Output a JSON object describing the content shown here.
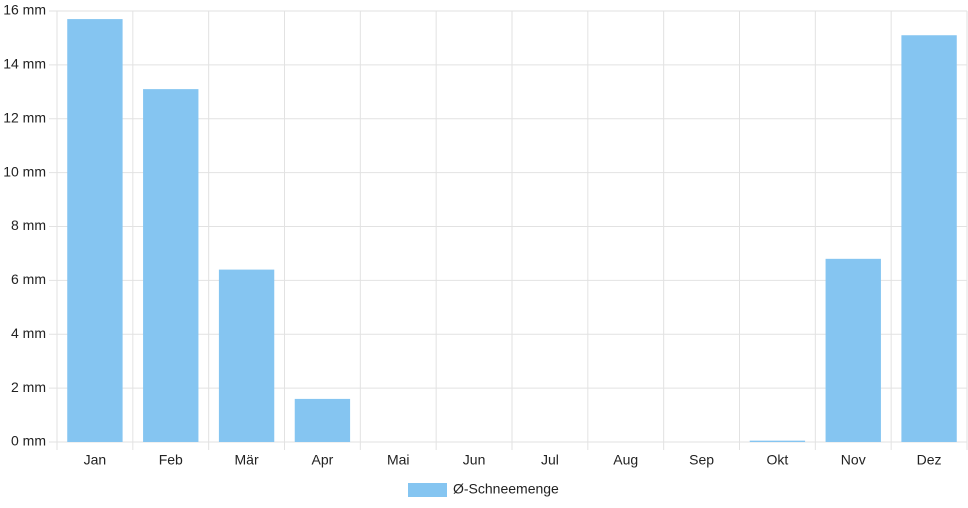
{
  "chart_data": {
    "type": "bar",
    "categories": [
      "Jan",
      "Feb",
      "Mär",
      "Apr",
      "Mai",
      "Jun",
      "Jul",
      "Aug",
      "Sep",
      "Okt",
      "Nov",
      "Dez"
    ],
    "series": [
      {
        "name": "Ø-Schneemenge",
        "color": "#85c5f1",
        "values": [
          15.7,
          13.1,
          6.4,
          1.6,
          0,
          0,
          0,
          0,
          0,
          0.05,
          6.8,
          15.1
        ]
      }
    ],
    "ylim": [
      0,
      16
    ],
    "yticks": [
      {
        "value": 0,
        "label": "0 mm"
      },
      {
        "value": 2,
        "label": "2 mm"
      },
      {
        "value": 4,
        "label": "4 mm"
      },
      {
        "value": 6,
        "label": "6 mm"
      },
      {
        "value": 8,
        "label": "8 mm"
      },
      {
        "value": 10,
        "label": "10 mm"
      },
      {
        "value": 12,
        "label": "12 mm"
      },
      {
        "value": 14,
        "label": "14 mm"
      },
      {
        "value": 16,
        "label": "16 mm"
      }
    ],
    "grid": true,
    "legend": "bottom"
  }
}
